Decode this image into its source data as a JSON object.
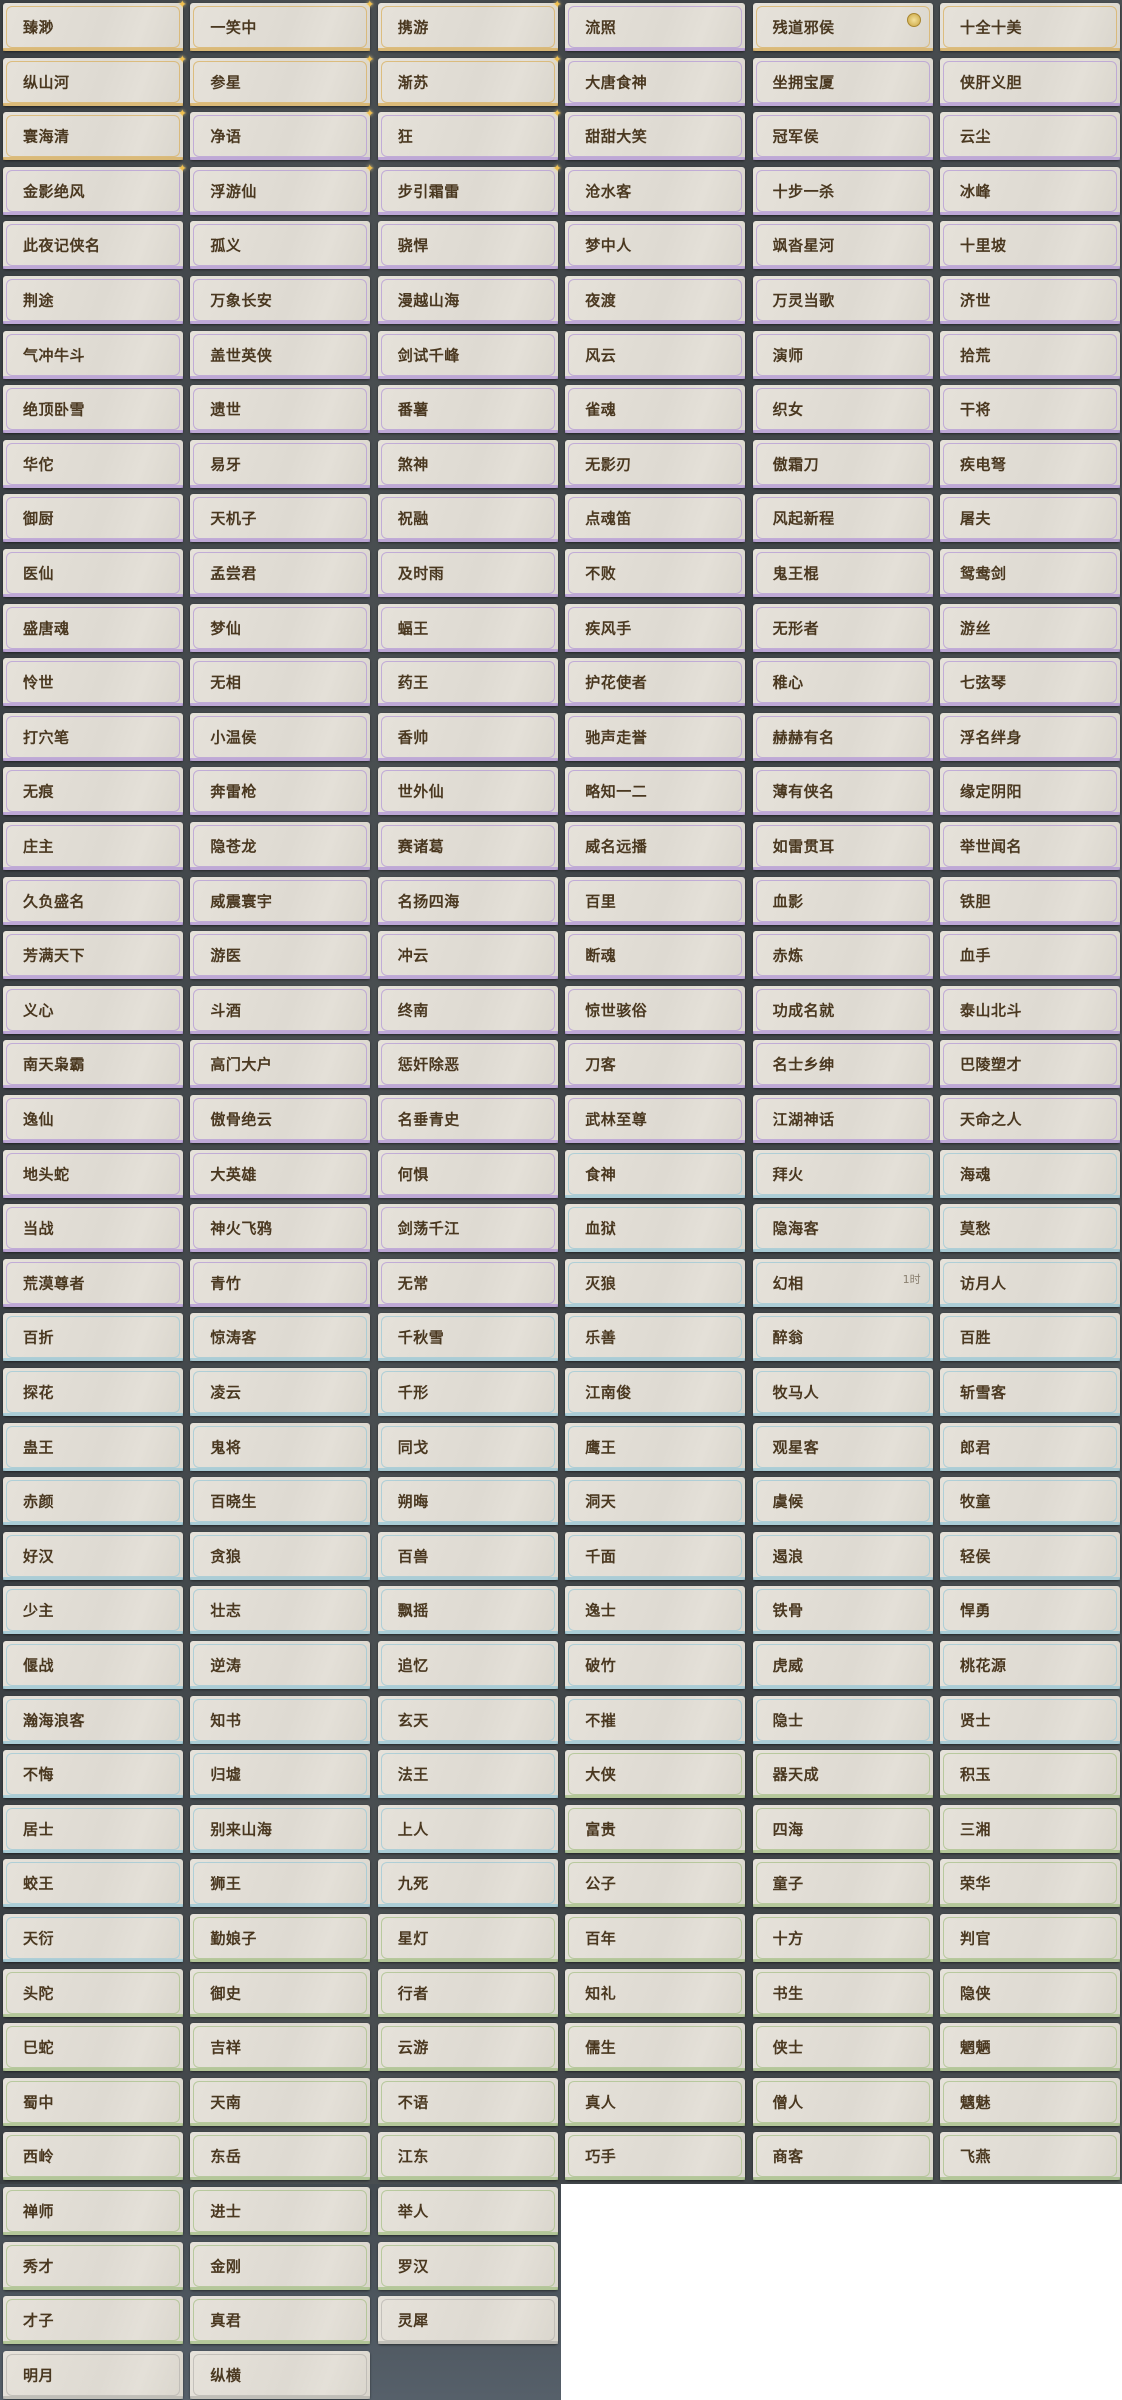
{
  "tiers": {
    "gold": "#d8b060",
    "purple": "#b49ad6",
    "blue": "#9cc8d6",
    "green": "#a8c08a",
    "gray": "#b8b6b0"
  },
  "rows": [
    [
      {
        "t": "臻渺",
        "c": "gold",
        "star": true
      },
      {
        "t": "一笑中",
        "c": "gold",
        "star": true
      },
      {
        "t": "携游",
        "c": "gold",
        "star": true
      },
      {
        "t": "流照",
        "c": "purple"
      },
      {
        "t": "残道邪侯",
        "c": "gold",
        "icon": "coin-icon"
      },
      {
        "t": "十全十美",
        "c": "gold"
      }
    ],
    [
      {
        "t": "纵山河",
        "c": "gold",
        "star": true
      },
      {
        "t": "参星",
        "c": "gold",
        "star": true
      },
      {
        "t": "渐苏",
        "c": "gold",
        "star": true
      },
      {
        "t": "大唐食神",
        "c": "purple"
      },
      {
        "t": "坐拥宝厦",
        "c": "purple"
      },
      {
        "t": "侠肝义胆",
        "c": "purple"
      }
    ],
    [
      {
        "t": "寰海清",
        "c": "gold",
        "star": true
      },
      {
        "t": "净语",
        "c": "purple",
        "star": true
      },
      {
        "t": "狂",
        "c": "purple",
        "star": true
      },
      {
        "t": "甜甜大笑",
        "c": "purple"
      },
      {
        "t": "冠军侯",
        "c": "purple"
      },
      {
        "t": "云尘",
        "c": "purple"
      }
    ],
    [
      {
        "t": "金影绝风",
        "c": "purple",
        "star": true
      },
      {
        "t": "浮游仙",
        "c": "purple",
        "star": true
      },
      {
        "t": "步引霜雷",
        "c": "purple",
        "star": true
      },
      {
        "t": "沧水客",
        "c": "purple"
      },
      {
        "t": "十步一杀",
        "c": "purple"
      },
      {
        "t": "冰峰",
        "c": "purple"
      }
    ],
    [
      {
        "t": "此夜记侠名",
        "c": "purple"
      },
      {
        "t": "孤义",
        "c": "purple"
      },
      {
        "t": "骁悍",
        "c": "purple"
      },
      {
        "t": "梦中人",
        "c": "purple"
      },
      {
        "t": "飒沓星河",
        "c": "purple"
      },
      {
        "t": "十里坡",
        "c": "purple"
      }
    ],
    [
      {
        "t": "荆途",
        "c": "purple"
      },
      {
        "t": "万象长安",
        "c": "purple"
      },
      {
        "t": "漫越山海",
        "c": "purple"
      },
      {
        "t": "夜渡",
        "c": "purple"
      },
      {
        "t": "万灵当歌",
        "c": "purple"
      },
      {
        "t": "济世",
        "c": "purple"
      }
    ],
    [
      {
        "t": "气冲牛斗",
        "c": "purple"
      },
      {
        "t": "盖世英侠",
        "c": "purple"
      },
      {
        "t": "剑试千峰",
        "c": "purple"
      },
      {
        "t": "风云",
        "c": "purple"
      },
      {
        "t": "演师",
        "c": "purple"
      },
      {
        "t": "拾荒",
        "c": "purple"
      }
    ],
    [
      {
        "t": "绝顶卧雪",
        "c": "purple"
      },
      {
        "t": "遗世",
        "c": "purple"
      },
      {
        "t": "番薯",
        "c": "purple"
      },
      {
        "t": "雀魂",
        "c": "purple"
      },
      {
        "t": "织女",
        "c": "purple"
      },
      {
        "t": "干将",
        "c": "purple"
      }
    ],
    [
      {
        "t": "华佗",
        "c": "purple"
      },
      {
        "t": "易牙",
        "c": "purple"
      },
      {
        "t": "煞神",
        "c": "purple"
      },
      {
        "t": "无影刃",
        "c": "purple"
      },
      {
        "t": "傲霜刀",
        "c": "purple"
      },
      {
        "t": "疾电弩",
        "c": "purple"
      }
    ],
    [
      {
        "t": "御厨",
        "c": "purple"
      },
      {
        "t": "天机子",
        "c": "purple"
      },
      {
        "t": "祝融",
        "c": "purple"
      },
      {
        "t": "点魂笛",
        "c": "purple"
      },
      {
        "t": "风起新程",
        "c": "purple"
      },
      {
        "t": "屠夫",
        "c": "purple"
      }
    ],
    [
      {
        "t": "医仙",
        "c": "purple"
      },
      {
        "t": "孟尝君",
        "c": "purple"
      },
      {
        "t": "及时雨",
        "c": "purple"
      },
      {
        "t": "不败",
        "c": "purple"
      },
      {
        "t": "鬼王棍",
        "c": "purple"
      },
      {
        "t": "鸳鸯剑",
        "c": "purple"
      }
    ],
    [
      {
        "t": "盛唐魂",
        "c": "purple"
      },
      {
        "t": "梦仙",
        "c": "purple"
      },
      {
        "t": "蝠王",
        "c": "purple"
      },
      {
        "t": "疾风手",
        "c": "purple"
      },
      {
        "t": "无形者",
        "c": "purple"
      },
      {
        "t": "游丝",
        "c": "purple"
      }
    ],
    [
      {
        "t": "怜世",
        "c": "purple"
      },
      {
        "t": "无相",
        "c": "purple"
      },
      {
        "t": "药王",
        "c": "purple"
      },
      {
        "t": "护花使者",
        "c": "purple"
      },
      {
        "t": "稚心",
        "c": "purple"
      },
      {
        "t": "七弦琴",
        "c": "purple"
      }
    ],
    [
      {
        "t": "打穴笔",
        "c": "purple"
      },
      {
        "t": "小温侯",
        "c": "purple"
      },
      {
        "t": "香帅",
        "c": "purple"
      },
      {
        "t": "驰声走誉",
        "c": "purple"
      },
      {
        "t": "赫赫有名",
        "c": "purple"
      },
      {
        "t": "浮名绊身",
        "c": "purple"
      }
    ],
    [
      {
        "t": "无痕",
        "c": "purple"
      },
      {
        "t": "奔雷枪",
        "c": "purple"
      },
      {
        "t": "世外仙",
        "c": "purple"
      },
      {
        "t": "略知一二",
        "c": "purple"
      },
      {
        "t": "薄有侠名",
        "c": "purple"
      },
      {
        "t": "缘定阴阳",
        "c": "purple"
      }
    ],
    [
      {
        "t": "庄主",
        "c": "purple"
      },
      {
        "t": "隐苍龙",
        "c": "purple"
      },
      {
        "t": "赛诸葛",
        "c": "purple"
      },
      {
        "t": "威名远播",
        "c": "purple"
      },
      {
        "t": "如雷贯耳",
        "c": "purple"
      },
      {
        "t": "举世闻名",
        "c": "purple"
      }
    ],
    [
      {
        "t": "久负盛名",
        "c": "purple"
      },
      {
        "t": "威震寰宇",
        "c": "purple"
      },
      {
        "t": "名扬四海",
        "c": "purple"
      },
      {
        "t": "百里",
        "c": "purple"
      },
      {
        "t": "血影",
        "c": "purple"
      },
      {
        "t": "铁胆",
        "c": "purple"
      }
    ],
    [
      {
        "t": "芳满天下",
        "c": "purple"
      },
      {
        "t": "游医",
        "c": "purple"
      },
      {
        "t": "冲云",
        "c": "purple"
      },
      {
        "t": "断魂",
        "c": "purple"
      },
      {
        "t": "赤炼",
        "c": "purple"
      },
      {
        "t": "血手",
        "c": "purple"
      }
    ],
    [
      {
        "t": "义心",
        "c": "purple"
      },
      {
        "t": "斗酒",
        "c": "purple"
      },
      {
        "t": "终南",
        "c": "purple"
      },
      {
        "t": "惊世骇俗",
        "c": "purple"
      },
      {
        "t": "功成名就",
        "c": "purple"
      },
      {
        "t": "泰山北斗",
        "c": "purple"
      }
    ],
    [
      {
        "t": "南天枭霸",
        "c": "purple"
      },
      {
        "t": "高门大户",
        "c": "purple"
      },
      {
        "t": "惩奸除恶",
        "c": "purple"
      },
      {
        "t": "刀客",
        "c": "purple"
      },
      {
        "t": "名士乡绅",
        "c": "purple"
      },
      {
        "t": "巴陵塑才",
        "c": "purple"
      }
    ],
    [
      {
        "t": "逸仙",
        "c": "purple"
      },
      {
        "t": "傲骨绝云",
        "c": "purple"
      },
      {
        "t": "名垂青史",
        "c": "purple"
      },
      {
        "t": "武林至尊",
        "c": "purple"
      },
      {
        "t": "江湖神话",
        "c": "purple"
      },
      {
        "t": "天命之人",
        "c": "purple"
      }
    ],
    [
      {
        "t": "地头蛇",
        "c": "purple"
      },
      {
        "t": "大英雄",
        "c": "purple"
      },
      {
        "t": "何惧",
        "c": "purple"
      },
      {
        "t": "食神",
        "c": "blue"
      },
      {
        "t": "拜火",
        "c": "blue"
      },
      {
        "t": "海魂",
        "c": "blue"
      }
    ],
    [
      {
        "t": "当战",
        "c": "purple"
      },
      {
        "t": "神火飞鸦",
        "c": "purple"
      },
      {
        "t": "剑荡千江",
        "c": "purple"
      },
      {
        "t": "血狱",
        "c": "blue"
      },
      {
        "t": "隐海客",
        "c": "blue"
      },
      {
        "t": "莫愁",
        "c": "blue"
      }
    ],
    [
      {
        "t": "荒漠尊者",
        "c": "purple"
      },
      {
        "t": "青竹",
        "c": "purple"
      },
      {
        "t": "无常",
        "c": "purple"
      },
      {
        "t": "灭狼",
        "c": "blue"
      },
      {
        "t": "幻相",
        "c": "blue",
        "badge": "1时"
      },
      {
        "t": "访月人",
        "c": "blue"
      }
    ],
    [
      {
        "t": "百折",
        "c": "blue"
      },
      {
        "t": "惊涛客",
        "c": "blue"
      },
      {
        "t": "千秋雪",
        "c": "blue"
      },
      {
        "t": "乐善",
        "c": "blue"
      },
      {
        "t": "醉翁",
        "c": "blue"
      },
      {
        "t": "百胜",
        "c": "blue"
      }
    ],
    [
      {
        "t": "探花",
        "c": "blue"
      },
      {
        "t": "凌云",
        "c": "blue"
      },
      {
        "t": "千形",
        "c": "blue"
      },
      {
        "t": "江南俊",
        "c": "blue"
      },
      {
        "t": "牧马人",
        "c": "blue"
      },
      {
        "t": "斩雪客",
        "c": "blue"
      }
    ],
    [
      {
        "t": "蛊王",
        "c": "blue"
      },
      {
        "t": "鬼将",
        "c": "blue"
      },
      {
        "t": "同戈",
        "c": "blue"
      },
      {
        "t": "鹰王",
        "c": "blue"
      },
      {
        "t": "观星客",
        "c": "blue"
      },
      {
        "t": "郎君",
        "c": "blue"
      }
    ],
    [
      {
        "t": "赤颜",
        "c": "blue"
      },
      {
        "t": "百晓生",
        "c": "blue"
      },
      {
        "t": "朔晦",
        "c": "blue"
      },
      {
        "t": "洞天",
        "c": "blue"
      },
      {
        "t": "虞候",
        "c": "blue"
      },
      {
        "t": "牧童",
        "c": "blue"
      }
    ],
    [
      {
        "t": "好汉",
        "c": "blue"
      },
      {
        "t": "贪狼",
        "c": "blue"
      },
      {
        "t": "百兽",
        "c": "blue"
      },
      {
        "t": "千面",
        "c": "blue"
      },
      {
        "t": "遏浪",
        "c": "blue"
      },
      {
        "t": "轻侯",
        "c": "blue"
      }
    ],
    [
      {
        "t": "少主",
        "c": "blue"
      },
      {
        "t": "壮志",
        "c": "blue"
      },
      {
        "t": "飘摇",
        "c": "blue"
      },
      {
        "t": "逸士",
        "c": "blue"
      },
      {
        "t": "铁骨",
        "c": "blue"
      },
      {
        "t": "悍勇",
        "c": "blue"
      }
    ],
    [
      {
        "t": "偃战",
        "c": "blue"
      },
      {
        "t": "逆涛",
        "c": "blue"
      },
      {
        "t": "追忆",
        "c": "blue"
      },
      {
        "t": "破竹",
        "c": "blue"
      },
      {
        "t": "虎威",
        "c": "blue"
      },
      {
        "t": "桃花源",
        "c": "blue"
      }
    ],
    [
      {
        "t": "瀚海浪客",
        "c": "blue"
      },
      {
        "t": "知书",
        "c": "blue"
      },
      {
        "t": "玄天",
        "c": "blue"
      },
      {
        "t": "不摧",
        "c": "blue"
      },
      {
        "t": "隐士",
        "c": "blue"
      },
      {
        "t": "贤士",
        "c": "blue"
      }
    ],
    [
      {
        "t": "不悔",
        "c": "blue"
      },
      {
        "t": "归墟",
        "c": "blue"
      },
      {
        "t": "法王",
        "c": "blue"
      },
      {
        "t": "大侠",
        "c": "green"
      },
      {
        "t": "器天成",
        "c": "green"
      },
      {
        "t": "积玉",
        "c": "green"
      }
    ],
    [
      {
        "t": "居士",
        "c": "blue"
      },
      {
        "t": "别来山海",
        "c": "blue"
      },
      {
        "t": "上人",
        "c": "blue"
      },
      {
        "t": "富贵",
        "c": "green"
      },
      {
        "t": "四海",
        "c": "green"
      },
      {
        "t": "三湘",
        "c": "green"
      }
    ],
    [
      {
        "t": "蛟王",
        "c": "blue"
      },
      {
        "t": "狮王",
        "c": "blue"
      },
      {
        "t": "九死",
        "c": "blue"
      },
      {
        "t": "公子",
        "c": "green"
      },
      {
        "t": "童子",
        "c": "green"
      },
      {
        "t": "荣华",
        "c": "green"
      }
    ],
    [
      {
        "t": "天衍",
        "c": "blue"
      },
      {
        "t": "勤娘子",
        "c": "green"
      },
      {
        "t": "星灯",
        "c": "green"
      },
      {
        "t": "百年",
        "c": "green"
      },
      {
        "t": "十方",
        "c": "green"
      },
      {
        "t": "判官",
        "c": "green"
      }
    ],
    [
      {
        "t": "头陀",
        "c": "green"
      },
      {
        "t": "御史",
        "c": "green"
      },
      {
        "t": "行者",
        "c": "green"
      },
      {
        "t": "知礼",
        "c": "green"
      },
      {
        "t": "书生",
        "c": "green"
      },
      {
        "t": "隐侠",
        "c": "green"
      }
    ],
    [
      {
        "t": "巳蛇",
        "c": "green"
      },
      {
        "t": "吉祥",
        "c": "green"
      },
      {
        "t": "云游",
        "c": "green"
      },
      {
        "t": "儒生",
        "c": "green"
      },
      {
        "t": "侠士",
        "c": "green"
      },
      {
        "t": "魍魉",
        "c": "green"
      }
    ],
    [
      {
        "t": "蜀中",
        "c": "green"
      },
      {
        "t": "天南",
        "c": "green"
      },
      {
        "t": "不语",
        "c": "green"
      },
      {
        "t": "真人",
        "c": "green"
      },
      {
        "t": "僧人",
        "c": "green"
      },
      {
        "t": "魑魅",
        "c": "green"
      }
    ],
    [
      {
        "t": "西岭",
        "c": "green"
      },
      {
        "t": "东岳",
        "c": "green"
      },
      {
        "t": "江东",
        "c": "green"
      },
      {
        "t": "巧手",
        "c": "green"
      },
      {
        "t": "商客",
        "c": "green"
      },
      {
        "t": "飞燕",
        "c": "green"
      }
    ],
    [
      {
        "t": "禅师",
        "c": "green"
      },
      {
        "t": "进士",
        "c": "green"
      },
      {
        "t": "举人",
        "c": "green"
      }
    ],
    [
      {
        "t": "秀才",
        "c": "green"
      },
      {
        "t": "金刚",
        "c": "green"
      },
      {
        "t": "罗汉",
        "c": "green"
      }
    ],
    [
      {
        "t": "才子",
        "c": "green"
      },
      {
        "t": "真君",
        "c": "green"
      },
      {
        "t": "灵犀",
        "c": "gray"
      }
    ],
    [
      {
        "t": "明月",
        "c": "gray"
      },
      {
        "t": "纵横",
        "c": "gray"
      }
    ]
  ]
}
